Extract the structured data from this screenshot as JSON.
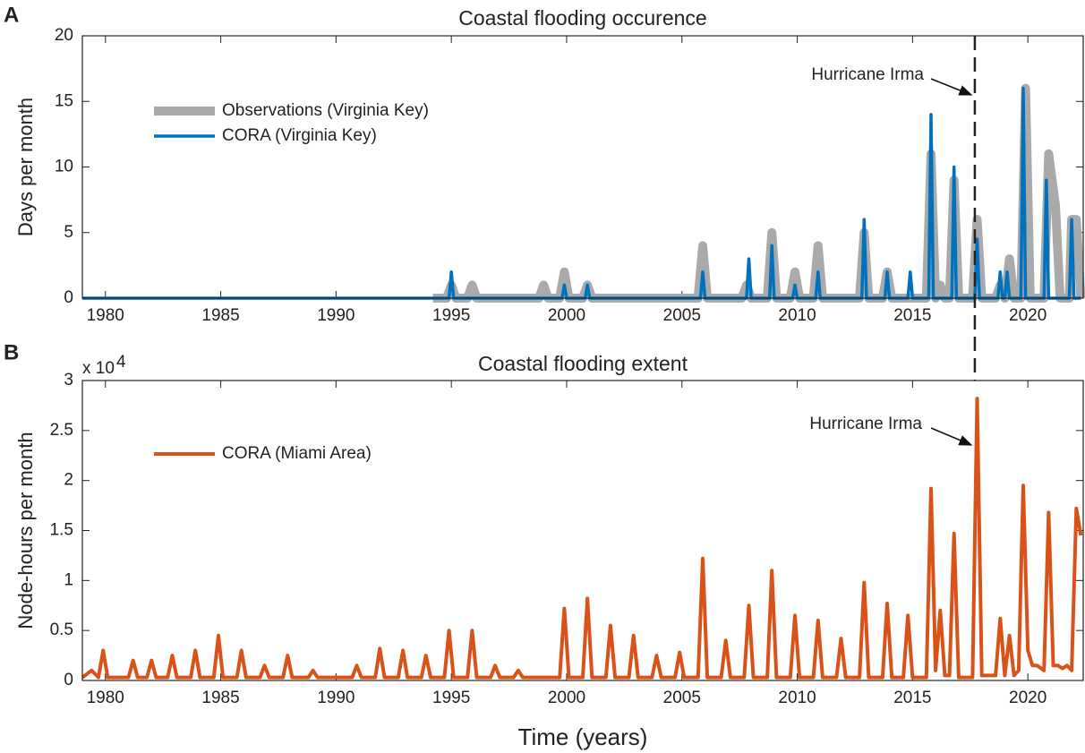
{
  "chart_data": [
    {
      "type": "line",
      "panel": "A",
      "title": "Coastal flooding occurence",
      "ylabel": "Days per month",
      "xlim": [
        1979,
        2022.4
      ],
      "xticks": [
        1980,
        1985,
        1990,
        1995,
        2000,
        2005,
        2010,
        2015,
        2020
      ],
      "ylim": [
        0,
        20
      ],
      "yticks": [
        0,
        5,
        10,
        15,
        20
      ],
      "annotation": "Hurricane Irma",
      "vline": 2017.7,
      "series": [
        {
          "name": "Observations (Virginia Key)",
          "color": "#aaaaaa",
          "width": 10,
          "x": [
            1994.2,
            1994.8,
            1995,
            1995.2,
            1995.7,
            1995.9,
            1996.1,
            1998.8,
            1999,
            1999.2,
            1999.7,
            1999.9,
            2000.1,
            2000.7,
            2000.9,
            2001.1,
            2005.7,
            2005.9,
            2006.1,
            2007.6,
            2007.8,
            2008.0,
            2008.7,
            2008.9,
            2009.1,
            2009.7,
            2009.9,
            2010.1,
            2010.7,
            2010.9,
            2011.1,
            2012.7,
            2012.9,
            2013.1,
            2013.7,
            2013.9,
            2014.1,
            2015.6,
            2015.8,
            2016.0,
            2016.2,
            2016.4,
            2016.6,
            2016.8,
            2017.0,
            2017.6,
            2017.8,
            2018.0,
            2018.6,
            2018.8,
            2019.0,
            2019.2,
            2019.4,
            2019.7,
            2019.9,
            2020.1,
            2020.7,
            2020.9,
            2021.2,
            2021.4,
            2021.8,
            2021.9,
            2022.1,
            2022.3
          ],
          "values": [
            0,
            0,
            1,
            0,
            0,
            1,
            0,
            0,
            1,
            0,
            0,
            2,
            0,
            0,
            1,
            0,
            0,
            4,
            0,
            0,
            1,
            0,
            0,
            5,
            0,
            0,
            2,
            0,
            0,
            4,
            0,
            0,
            5,
            0,
            0,
            2,
            0,
            0,
            11,
            0,
            1,
            0,
            0,
            9,
            0,
            0,
            6,
            0,
            0,
            1,
            0,
            3,
            0,
            0,
            16,
            0,
            0,
            11,
            7,
            0,
            0,
            6,
            6,
            0
          ]
        },
        {
          "name": "CORA (Virginia Key)",
          "color": "#0072bd",
          "width": 3.5,
          "x": [
            1979,
            1994.9,
            1995,
            1995.1,
            1999.8,
            1999.9,
            2000.0,
            2000.8,
            2000.9,
            2001.0,
            2005.8,
            2005.9,
            2006.0,
            2007.8,
            2007.9,
            2008.0,
            2008.8,
            2008.9,
            2009.0,
            2009.8,
            2009.9,
            2010.0,
            2010.8,
            2010.9,
            2011.0,
            2012.8,
            2012.9,
            2013.0,
            2013.8,
            2013.9,
            2014.0,
            2014.8,
            2014.9,
            2015.0,
            2015.7,
            2015.8,
            2015.9,
            2016.7,
            2016.8,
            2016.9,
            2017.7,
            2017.8,
            2017.9,
            2018.7,
            2018.8,
            2018.9,
            2019.0,
            2019.1,
            2019.2,
            2019.7,
            2019.8,
            2019.9,
            2020.7,
            2020.8,
            2020.9,
            2021.8,
            2021.9,
            2022.0,
            2022.3
          ],
          "values": [
            0,
            0,
            2,
            0,
            0,
            1,
            0,
            0,
            1,
            0,
            0,
            2,
            0,
            0,
            3,
            0,
            0,
            4,
            0,
            0,
            1,
            0,
            0,
            2,
            0,
            0,
            6,
            0,
            0,
            2,
            0,
            0,
            2,
            0,
            0,
            14,
            0,
            0,
            10,
            0,
            0,
            4.5,
            0,
            0,
            2,
            0,
            0,
            2,
            0,
            0,
            16,
            0,
            0,
            9,
            0,
            0,
            6,
            0,
            0
          ]
        }
      ]
    },
    {
      "type": "line",
      "panel": "B",
      "title": "Coastal flooding extent",
      "ylabel": "Node-hours per month",
      "xlabel": "Time (years)",
      "multiplier": "x 10",
      "multiplier_exponent": "4",
      "xlim": [
        1979,
        2022.4
      ],
      "xticks": [
        1980,
        1985,
        1990,
        1995,
        2000,
        2005,
        2010,
        2015,
        2020
      ],
      "ylim": [
        0,
        3
      ],
      "yticks": [
        0,
        0.5,
        1,
        1.5,
        2,
        2.5,
        3
      ],
      "annotation": "Hurricane Irma",
      "series": [
        {
          "name": "CORA (Miami Area)",
          "color": "#d95319",
          "width": 4,
          "x": [
            1979,
            1979.4,
            1979.7,
            1979.9,
            1980.1,
            1981.0,
            1981.2,
            1981.4,
            1981.8,
            1982.0,
            1982.2,
            1982.7,
            1982.9,
            1983.1,
            1983.7,
            1983.9,
            1984.1,
            1984.7,
            1984.9,
            1985.1,
            1985.7,
            1985.9,
            1986.1,
            1986.7,
            1986.9,
            1987.1,
            1987.7,
            1987.9,
            1988.1,
            1988.8,
            1989.0,
            1989.2,
            1990.7,
            1990.9,
            1991.1,
            1991.7,
            1991.9,
            1992.1,
            1992.7,
            1992.9,
            1993.1,
            1993.7,
            1993.9,
            1994.1,
            1994.7,
            1994.9,
            1995.1,
            1995.7,
            1995.9,
            1996.1,
            1996.7,
            1996.9,
            1997.1,
            1997.7,
            1997.9,
            1998.1,
            1999.7,
            1999.9,
            2000.1,
            2000.7,
            2000.9,
            2001.1,
            2001.7,
            2001.9,
            2002.1,
            2002.7,
            2002.9,
            2003.1,
            2003.7,
            2003.9,
            2004.1,
            2004.7,
            2004.9,
            2005.1,
            2005.7,
            2005.9,
            2006.1,
            2006.7,
            2006.9,
            2007.1,
            2007.7,
            2007.9,
            2008.1,
            2008.7,
            2008.9,
            2009.1,
            2009.7,
            2009.9,
            2010.1,
            2010.7,
            2010.9,
            2011.1,
            2011.7,
            2011.9,
            2012.1,
            2012.7,
            2012.9,
            2013.1,
            2013.7,
            2013.9,
            2014.1,
            2014.6,
            2014.8,
            2015.0,
            2015.6,
            2015.8,
            2016.0,
            2016.2,
            2016.4,
            2016.6,
            2016.8,
            2017.0,
            2017.6,
            2017.8,
            2018.0,
            2018.6,
            2018.8,
            2019.0,
            2019.2,
            2019.4,
            2019.6,
            2019.8,
            2020.0,
            2020.2,
            2020.4,
            2020.7,
            2020.9,
            2021.1,
            2021.3,
            2021.5,
            2021.7,
            2021.9,
            2022.1,
            2022.3
          ],
          "values": [
            0.03,
            0.1,
            0.03,
            0.3,
            0.03,
            0.03,
            0.2,
            0.03,
            0.03,
            0.2,
            0.03,
            0.03,
            0.25,
            0.03,
            0.03,
            0.3,
            0.03,
            0.03,
            0.45,
            0.03,
            0.03,
            0.3,
            0.03,
            0.03,
            0.15,
            0.03,
            0.03,
            0.25,
            0.03,
            0.03,
            0.1,
            0.03,
            0.03,
            0.15,
            0.03,
            0.03,
            0.32,
            0.03,
            0.03,
            0.3,
            0.03,
            0.03,
            0.25,
            0.03,
            0.03,
            0.5,
            0.03,
            0.03,
            0.5,
            0.03,
            0.03,
            0.15,
            0.03,
            0.03,
            0.1,
            0.03,
            0.03,
            0.72,
            0.03,
            0.03,
            0.82,
            0.03,
            0.03,
            0.55,
            0.03,
            0.03,
            0.45,
            0.03,
            0.03,
            0.25,
            0.03,
            0.03,
            0.28,
            0.03,
            0.03,
            1.22,
            0.03,
            0.03,
            0.4,
            0.03,
            0.03,
            0.75,
            0.03,
            0.03,
            1.1,
            0.03,
            0.03,
            0.65,
            0.03,
            0.03,
            0.6,
            0.03,
            0.03,
            0.42,
            0.03,
            0.03,
            0.98,
            0.03,
            0.03,
            0.77,
            0.03,
            0.03,
            0.65,
            0.03,
            0.03,
            1.92,
            0.1,
            0.7,
            0.05,
            0.05,
            1.47,
            0.03,
            0.03,
            2.82,
            0.05,
            0.05,
            0.62,
            0.05,
            0.45,
            0.05,
            0.1,
            1.95,
            0.3,
            0.15,
            0.15,
            0.1,
            1.68,
            0.15,
            0.15,
            0.12,
            0.15,
            0.1,
            1.72,
            1.45
          ]
        }
      ]
    }
  ]
}
